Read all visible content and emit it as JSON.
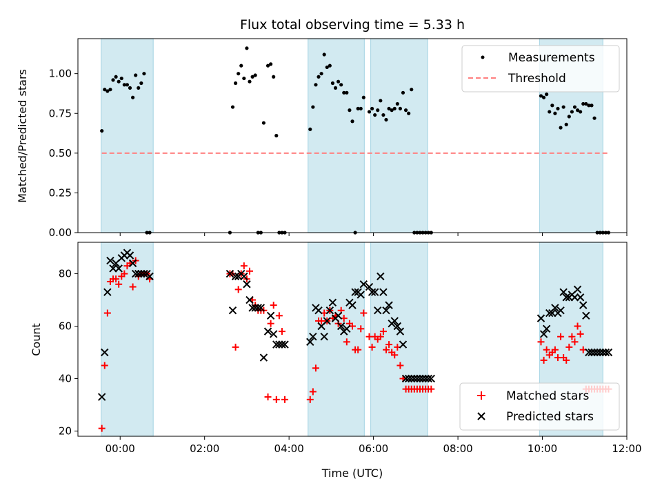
{
  "figure": {
    "title": "Flux total observing time = 5.33 h",
    "xlabel": "Time (UTC)"
  },
  "colors": {
    "band": "#add8e6",
    "measurement": "#000000",
    "threshold": "#ff7f7f",
    "matched": "#ff0000",
    "predicted": "#000000"
  },
  "chart_data": [
    {
      "type": "scatter",
      "title": "Flux total observing time = 5.33 h",
      "xlabel": "",
      "ylabel": "Matched/Predicted stars",
      "xlim": [
        "-01:00",
        "12:00"
      ],
      "ylim": [
        0,
        1.22
      ],
      "x_ticks": [
        "00:00",
        "02:00",
        "04:00",
        "06:00",
        "08:00",
        "10:00",
        "12:00"
      ],
      "y_ticks": [
        "0.00",
        "0.25",
        "0.50",
        "0.75",
        "1.00"
      ],
      "grid": false,
      "legend": "top-right",
      "legend_entries": [
        "Measurements",
        "Threshold"
      ],
      "observing_windows": [
        [
          "-00:27",
          "00:47"
        ],
        [
          "04:27",
          "05:47"
        ],
        [
          "05:56",
          "07:17"
        ],
        [
          "09:56",
          "11:26"
        ]
      ],
      "threshold": 0.5,
      "series": [
        {
          "name": "Measurements",
          "x": [
            "-00:26",
            "-00:22",
            "-00:18",
            "-00:14",
            "-00:10",
            "-00:06",
            "-00:02",
            "00:02",
            "00:06",
            "00:10",
            "00:14",
            "00:18",
            "00:22",
            "00:26",
            "00:30",
            "00:34",
            "00:38",
            "00:42",
            "02:36",
            "02:40",
            "02:44",
            "02:48",
            "02:52",
            "02:56",
            "03:00",
            "03:04",
            "03:08",
            "03:12",
            "03:16",
            "03:20",
            "03:24",
            "03:30",
            "03:34",
            "03:38",
            "03:42",
            "03:46",
            "03:50",
            "03:54",
            "04:30",
            "04:34",
            "04:38",
            "04:42",
            "04:46",
            "04:50",
            "04:54",
            "04:58",
            "05:02",
            "05:06",
            "05:10",
            "05:14",
            "05:18",
            "05:22",
            "05:26",
            "05:30",
            "05:34",
            "05:38",
            "05:42",
            "05:46",
            "05:54",
            "05:58",
            "06:02",
            "06:06",
            "06:10",
            "06:14",
            "06:18",
            "06:22",
            "06:26",
            "06:30",
            "06:34",
            "06:38",
            "06:42",
            "06:46",
            "06:50",
            "06:54",
            "06:58",
            "07:02",
            "07:06",
            "07:10",
            "07:14",
            "07:18",
            "07:22",
            "09:58",
            "10:02",
            "10:06",
            "10:10",
            "10:14",
            "10:18",
            "10:22",
            "10:26",
            "10:30",
            "10:34",
            "10:38",
            "10:42",
            "10:46",
            "10:50",
            "10:54",
            "10:58",
            "11:02",
            "11:06",
            "11:10",
            "11:14",
            "11:18",
            "11:22",
            "11:26",
            "11:30",
            "11:34"
          ],
          "y": [
            0.64,
            0.9,
            0.89,
            0.9,
            0.96,
            0.98,
            0.95,
            0.97,
            0.93,
            0.93,
            0.91,
            0.85,
            0.99,
            0.91,
            0.94,
            1.0,
            0.0,
            0.0,
            0.0,
            0.79,
            0.94,
            1.0,
            1.05,
            0.97,
            1.16,
            0.95,
            0.98,
            0.99,
            0.0,
            0.0,
            0.69,
            1.05,
            1.06,
            0.98,
            0.61,
            0.0,
            0.0,
            0.0,
            0.65,
            0.79,
            0.93,
            0.98,
            1.0,
            1.12,
            1.04,
            1.05,
            0.94,
            0.91,
            0.95,
            0.93,
            0.88,
            0.88,
            0.77,
            0.7,
            0.0,
            0.78,
            0.78,
            0.85,
            0.76,
            0.78,
            0.74,
            0.77,
            0.83,
            0.74,
            0.71,
            0.78,
            0.77,
            0.78,
            0.81,
            0.78,
            0.88,
            0.77,
            0.75,
            0.9,
            0.0,
            0.0,
            0.0,
            0.0,
            0.0,
            0.0,
            0.0,
            0.86,
            0.85,
            0.87,
            0.76,
            0.8,
            0.75,
            0.78,
            0.66,
            0.79,
            0.68,
            0.73,
            0.76,
            0.79,
            0.77,
            0.76,
            0.81,
            0.81,
            0.8,
            0.8,
            0.72,
            0.0,
            0.0,
            0.0,
            0.0,
            0.0
          ]
        }
      ]
    },
    {
      "type": "scatter",
      "xlabel": "Time (UTC)",
      "ylabel": "Count",
      "xlim": [
        "-01:00",
        "12:00"
      ],
      "ylim": [
        18,
        92
      ],
      "x_ticks": [
        "00:00",
        "02:00",
        "04:00",
        "06:00",
        "08:00",
        "10:00",
        "12:00"
      ],
      "y_ticks": [
        "20",
        "40",
        "60",
        "80"
      ],
      "grid": false,
      "legend": "bottom-right",
      "legend_entries": [
        "Matched stars",
        "Predicted stars"
      ],
      "observing_windows": [
        [
          "-00:27",
          "00:47"
        ],
        [
          "04:27",
          "05:47"
        ],
        [
          "05:56",
          "07:17"
        ],
        [
          "09:56",
          "11:26"
        ]
      ],
      "series": [
        {
          "name": "Matched stars",
          "x": [
            "-00:26",
            "-00:22",
            "-00:18",
            "-00:14",
            "-00:10",
            "-00:06",
            "-00:02",
            "00:02",
            "00:06",
            "00:10",
            "00:14",
            "00:18",
            "00:22",
            "00:26",
            "00:30",
            "00:34",
            "00:38",
            "00:42",
            "02:36",
            "02:40",
            "02:44",
            "02:48",
            "02:52",
            "02:56",
            "03:00",
            "03:04",
            "03:08",
            "03:12",
            "03:16",
            "03:20",
            "03:24",
            "03:30",
            "03:34",
            "03:38",
            "03:42",
            "03:46",
            "03:50",
            "03:54",
            "04:30",
            "04:34",
            "04:38",
            "04:42",
            "04:46",
            "04:50",
            "04:54",
            "04:58",
            "05:02",
            "05:06",
            "05:10",
            "05:14",
            "05:18",
            "05:22",
            "05:26",
            "05:30",
            "05:34",
            "05:38",
            "05:42",
            "05:46",
            "05:54",
            "05:58",
            "06:02",
            "06:06",
            "06:10",
            "06:14",
            "06:18",
            "06:22",
            "06:26",
            "06:30",
            "06:34",
            "06:38",
            "06:42",
            "06:46",
            "06:50",
            "06:54",
            "06:58",
            "07:02",
            "07:06",
            "07:10",
            "07:14",
            "07:18",
            "07:22",
            "09:58",
            "10:02",
            "10:06",
            "10:10",
            "10:14",
            "10:18",
            "10:22",
            "10:26",
            "10:30",
            "10:34",
            "10:38",
            "10:42",
            "10:46",
            "10:50",
            "10:54",
            "10:58",
            "11:02",
            "11:06",
            "11:10",
            "11:14",
            "11:18",
            "11:22",
            "11:26",
            "11:30",
            "11:34"
          ],
          "y": [
            21,
            45,
            65,
            77,
            78,
            78,
            76,
            79,
            80,
            83,
            84,
            75,
            85,
            79,
            80,
            80,
            80,
            78,
            80,
            80,
            52,
            74,
            80,
            83,
            78,
            81,
            70,
            68,
            66,
            66,
            66,
            33,
            61,
            68,
            32,
            64,
            58,
            32,
            32,
            35,
            44,
            62,
            62,
            65,
            62,
            66,
            63,
            64,
            61,
            66,
            63,
            54,
            61,
            60,
            51,
            51,
            59,
            65,
            56,
            52,
            56,
            55,
            56,
            58,
            51,
            53,
            50,
            49,
            52,
            45,
            40,
            36,
            36,
            36,
            36,
            36,
            36,
            36,
            36,
            36,
            36,
            54,
            47,
            51,
            49,
            50,
            51,
            48,
            56,
            48,
            47,
            52,
            56,
            54,
            60,
            57,
            51,
            36,
            36,
            36,
            36,
            36,
            36,
            36,
            36,
            36
          ],
          "note_omit": []
        },
        {
          "name": "Predicted stars",
          "x": [
            "-00:26",
            "-00:22",
            "-00:18",
            "-00:14",
            "-00:10",
            "-00:06",
            "-00:02",
            "00:02",
            "00:06",
            "00:10",
            "00:14",
            "00:18",
            "00:22",
            "00:26",
            "00:30",
            "00:34",
            "00:38",
            "00:42",
            "02:36",
            "02:40",
            "02:44",
            "02:48",
            "02:52",
            "02:56",
            "03:00",
            "03:04",
            "03:08",
            "03:12",
            "03:16",
            "03:20",
            "03:24",
            "03:30",
            "03:34",
            "03:38",
            "03:42",
            "03:46",
            "03:50",
            "03:54",
            "04:30",
            "04:34",
            "04:38",
            "04:42",
            "04:46",
            "04:50",
            "04:54",
            "04:58",
            "05:02",
            "05:06",
            "05:10",
            "05:14",
            "05:18",
            "05:22",
            "05:26",
            "05:30",
            "05:34",
            "05:38",
            "05:42",
            "05:46",
            "05:54",
            "05:58",
            "06:02",
            "06:06",
            "06:10",
            "06:14",
            "06:18",
            "06:22",
            "06:26",
            "06:30",
            "06:34",
            "06:38",
            "06:42",
            "06:46",
            "06:50",
            "06:54",
            "06:58",
            "07:02",
            "07:06",
            "07:10",
            "07:14",
            "07:18",
            "07:22",
            "09:58",
            "10:02",
            "10:06",
            "10:10",
            "10:14",
            "10:18",
            "10:22",
            "10:26",
            "10:30",
            "10:34",
            "10:38",
            "10:42",
            "10:46",
            "10:50",
            "10:54",
            "10:58",
            "11:02",
            "11:06",
            "11:10",
            "11:14",
            "11:18",
            "11:22",
            "11:26",
            "11:30",
            "11:34"
          ],
          "y": [
            33,
            50,
            73,
            85,
            82,
            84,
            82,
            86,
            87,
            88,
            87,
            84,
            80,
            80,
            80,
            80,
            80,
            79,
            80,
            66,
            79,
            79,
            80,
            79,
            76,
            70,
            67,
            67,
            67,
            67,
            48,
            58,
            64,
            57,
            53,
            53,
            53,
            53,
            54,
            56,
            67,
            66,
            60,
            56,
            62,
            66,
            69,
            63,
            64,
            60,
            58,
            59,
            69,
            68,
            73,
            73,
            72,
            76,
            75,
            73,
            73,
            66,
            79,
            73,
            66,
            68,
            61,
            62,
            60,
            58,
            53,
            40,
            40,
            40,
            40,
            40,
            40,
            40,
            40,
            40,
            40,
            63,
            57,
            59,
            65,
            65,
            67,
            65,
            66,
            73,
            71,
            71,
            72,
            71,
            74,
            71,
            68,
            64,
            50,
            50,
            50,
            50,
            50,
            50,
            50,
            50
          ]
        }
      ]
    }
  ]
}
